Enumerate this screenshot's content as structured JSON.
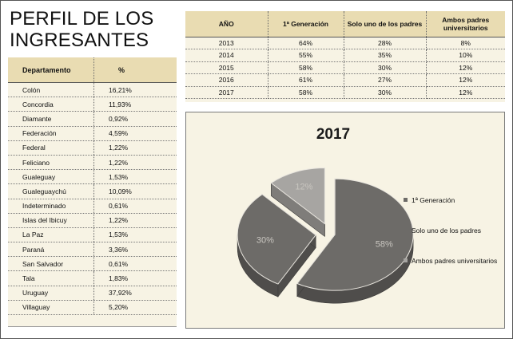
{
  "title": "PERFIL DE LOS INGRESANTES",
  "departments_table": {
    "headers": [
      "Departamento",
      "%"
    ],
    "rows": [
      [
        "Colón",
        "16,21%"
      ],
      [
        "Concordia",
        "11,93%"
      ],
      [
        "Diamante",
        "0,92%"
      ],
      [
        "Federación",
        "4,59%"
      ],
      [
        "Federal",
        "1,22%"
      ],
      [
        "Feliciano",
        "1,22%"
      ],
      [
        "Gualeguay",
        "1,53%"
      ],
      [
        "Gualeguaychú",
        "10,09%"
      ],
      [
        "Indeterminado",
        "0,61%"
      ],
      [
        "Islas del Ibicuy",
        "1,22%"
      ],
      [
        "La Paz",
        "1,53%"
      ],
      [
        "Paraná",
        "3,36%"
      ],
      [
        "San Salvador",
        "0,61%"
      ],
      [
        "Tala",
        "1,83%"
      ],
      [
        "Uruguay",
        "37,92%"
      ],
      [
        "Villaguay",
        "5,20%"
      ]
    ]
  },
  "year_table": {
    "headers": [
      "AÑO",
      "1ª Generación",
      "Solo uno de los padres",
      "Ambos padres universitarios"
    ],
    "rows": [
      [
        "2013",
        "64%",
        "28%",
        "8%"
      ],
      [
        "2014",
        "55%",
        "35%",
        "10%"
      ],
      [
        "2015",
        "58%",
        "30%",
        "12%"
      ],
      [
        "2016",
        "61%",
        "27%",
        "12%"
      ],
      [
        "2017",
        "58%",
        "30%",
        "12%"
      ]
    ]
  },
  "chart_data": {
    "type": "pie",
    "title": "2017",
    "categories": [
      "1ª Generación",
      "Solo uno de los padres",
      "Ambos padres universitarios"
    ],
    "values": [
      58,
      30,
      12
    ],
    "value_labels": [
      "58%",
      "30%",
      "12%"
    ],
    "legend_position": "right",
    "colors": [
      "#6d6b68",
      "#6d6b68",
      "#a7a5a2"
    ]
  }
}
